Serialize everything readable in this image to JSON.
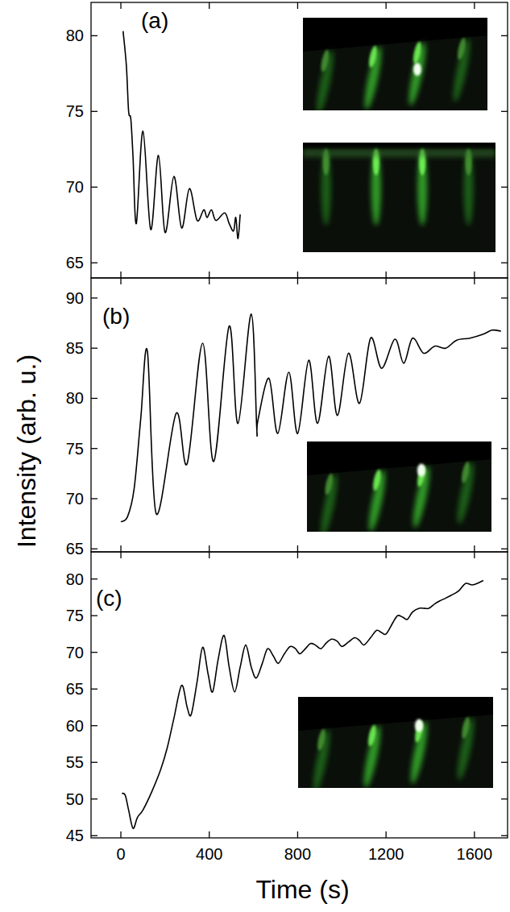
{
  "chart_data": [
    {
      "type": "line",
      "title": "(a)",
      "color": "#000000",
      "tick_labels": "y",
      "xlim": [
        -135,
        1750
      ],
      "xticks": [
        0,
        400,
        800,
        1200,
        1600
      ],
      "ylim": [
        64,
        82.2
      ],
      "yticks": [
        65,
        70,
        75,
        80
      ],
      "x": [
        10,
        25,
        35,
        45,
        55,
        70,
        100,
        135,
        170,
        200,
        240,
        275,
        310,
        345,
        375,
        390,
        410,
        430,
        470,
        490,
        510,
        520,
        530,
        540
      ],
      "values": [
        80.3,
        78,
        75,
        74.5,
        72,
        67.6,
        73.7,
        67.2,
        72.1,
        67.0,
        70.7,
        67.3,
        69.9,
        67.8,
        68.5,
        68.0,
        68.5,
        67.8,
        68.3,
        67.6,
        67.1,
        68.0,
        66.6,
        68.2
      ]
    },
    {
      "type": "line",
      "title": "(b)",
      "color": "#000000",
      "tick_labels": "y",
      "y_label": "Intensity (arb. u.)",
      "xlim": [
        -135,
        1750
      ],
      "xticks": [
        0,
        400,
        800,
        1200,
        1600
      ],
      "ylim": [
        64.7,
        92
      ],
      "yticks": [
        65,
        70,
        75,
        80,
        85,
        90
      ],
      "x": [
        0,
        30,
        60,
        90,
        120,
        160,
        250,
        300,
        370,
        420,
        490,
        530,
        590,
        615,
        620,
        670,
        710,
        760,
        800,
        850,
        890,
        940,
        980,
        1030,
        1080,
        1130,
        1180,
        1240,
        1280,
        1320,
        1370,
        1420,
        1470,
        1520,
        1580,
        1640,
        1680,
        1720
      ],
      "values": [
        67.7,
        68.2,
        71,
        78,
        84.7,
        68.5,
        78.5,
        73.5,
        85.5,
        73.7,
        87.2,
        77.5,
        88.4,
        77,
        77.8,
        82,
        76.5,
        82.6,
        76.5,
        83.8,
        77.5,
        84.2,
        78.3,
        84.5,
        79.5,
        86,
        83,
        85.9,
        83.5,
        86,
        84.5,
        85.2,
        85,
        85.8,
        86,
        86.4,
        86.8,
        86.7
      ]
    },
    {
      "type": "line",
      "title": "(c)",
      "color": "#000000",
      "x_label": "Time (s)",
      "xlim": [
        -135,
        1750
      ],
      "xticks": [
        0,
        400,
        800,
        1200,
        1600
      ],
      "ylim": [
        44.7,
        83.7
      ],
      "yticks": [
        45,
        50,
        55,
        60,
        65,
        70,
        75,
        80
      ],
      "x": [
        5,
        20,
        35,
        55,
        75,
        100,
        140,
        180,
        210,
        240,
        275,
        300,
        318,
        345,
        370,
        395,
        415,
        440,
        467,
        490,
        515,
        540,
        565,
        590,
        613,
        640,
        664,
        690,
        712,
        740,
        766,
        790,
        810,
        835,
        858,
        880,
        905,
        930,
        955,
        980,
        1000,
        1030,
        1058,
        1080,
        1100,
        1130,
        1157,
        1180,
        1200,
        1230,
        1252,
        1275,
        1296,
        1320,
        1350,
        1375,
        1394,
        1420,
        1442,
        1470,
        1496,
        1520,
        1533,
        1560,
        1590,
        1620,
        1640
      ],
      "values": [
        50.8,
        50.5,
        48.5,
        46,
        47.5,
        48.5,
        51,
        54,
        57,
        61,
        65.5,
        62.5,
        61.5,
        66,
        70.7,
        67,
        64.6,
        69,
        72.3,
        68,
        64.6,
        68,
        71,
        68,
        66.5,
        68.5,
        70.5,
        69.5,
        68.5,
        69.8,
        70.8,
        70.5,
        69.8,
        70.5,
        71.2,
        71,
        70.5,
        71.3,
        71.8,
        71.5,
        70.8,
        71.4,
        72,
        71.6,
        71,
        72,
        73,
        72.7,
        72.5,
        74,
        75,
        74.8,
        74.5,
        75.5,
        76,
        76,
        76,
        76.6,
        77,
        77.4,
        77.8,
        78.2,
        78.5,
        79.4,
        79.2,
        79.5,
        79.8
      ]
    }
  ]
}
